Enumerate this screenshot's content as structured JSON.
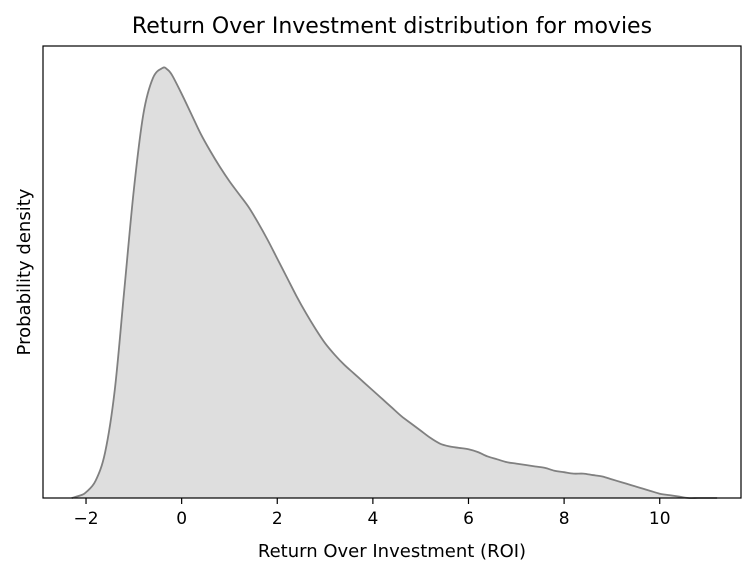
{
  "chart_data": {
    "type": "area",
    "title": "Return Over Investment distribution for movies",
    "xlabel": "Return Over Investment (ROI)",
    "ylabel": "Probability density",
    "xlim": [
      -2.9,
      11.7
    ],
    "ylim": [
      0,
      0.3
    ],
    "x_ticks": [
      -2,
      0,
      2,
      4,
      6,
      8,
      10
    ],
    "x_tick_labels": [
      "−2",
      "0",
      "2",
      "4",
      "6",
      "8",
      "10"
    ],
    "y_ticks_visible": false,
    "grid": false,
    "legend": "none",
    "fill_color": "#dedede",
    "line_color": "#808080",
    "series": [
      {
        "x": [
          -2.3,
          -2.1,
          -2.0,
          -1.8,
          -1.6,
          -1.4,
          -1.2,
          -1.0,
          -0.8,
          -0.6,
          -0.4,
          -0.3,
          -0.2,
          0.0,
          0.2,
          0.4,
          0.6,
          0.8,
          1.0,
          1.2,
          1.4,
          1.6,
          1.8,
          2.0,
          2.2,
          2.4,
          2.6,
          2.8,
          3.0,
          3.2,
          3.4,
          3.6,
          3.8,
          4.0,
          4.2,
          4.4,
          4.6,
          4.8,
          5.0,
          5.2,
          5.4,
          5.6,
          5.8,
          6.0,
          6.2,
          6.4,
          6.6,
          6.8,
          7.0,
          7.2,
          7.4,
          7.6,
          7.8,
          8.0,
          8.2,
          8.4,
          8.6,
          8.8,
          9.0,
          9.2,
          9.4,
          9.6,
          9.8,
          10.0,
          10.2,
          10.4,
          10.6,
          10.8,
          11.0,
          11.2
        ],
        "y": [
          0.0,
          0.002,
          0.004,
          0.012,
          0.032,
          0.075,
          0.145,
          0.215,
          0.268,
          0.293,
          0.3,
          0.299,
          0.295,
          0.282,
          0.268,
          0.254,
          0.242,
          0.231,
          0.221,
          0.212,
          0.203,
          0.192,
          0.18,
          0.167,
          0.154,
          0.141,
          0.129,
          0.118,
          0.108,
          0.1,
          0.093,
          0.087,
          0.081,
          0.075,
          0.069,
          0.063,
          0.057,
          0.052,
          0.047,
          0.042,
          0.038,
          0.036,
          0.035,
          0.034,
          0.032,
          0.029,
          0.027,
          0.025,
          0.024,
          0.023,
          0.022,
          0.021,
          0.019,
          0.018,
          0.017,
          0.017,
          0.016,
          0.015,
          0.013,
          0.011,
          0.009,
          0.007,
          0.005,
          0.003,
          0.002,
          0.001,
          0.0,
          0.0,
          0.0,
          0.0
        ]
      }
    ]
  }
}
